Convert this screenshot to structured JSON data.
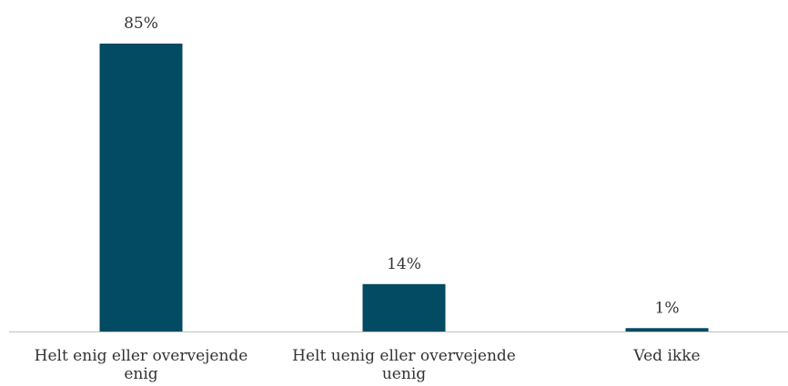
{
  "chart_data": {
    "type": "bar",
    "categories": [
      [
        "Helt enig eller overvejende",
        "enig"
      ],
      [
        "Helt uenig eller overvejende",
        "uenig"
      ],
      [
        "Ved ikke"
      ]
    ],
    "values": [
      85,
      14,
      1
    ],
    "data_labels": [
      "85%",
      "14%",
      "1%"
    ],
    "unit": "%",
    "ylim": [
      0,
      85
    ],
    "grid": false,
    "legend": "none",
    "bar_color": "#034A63",
    "axis_color": "#BFBFBF"
  }
}
